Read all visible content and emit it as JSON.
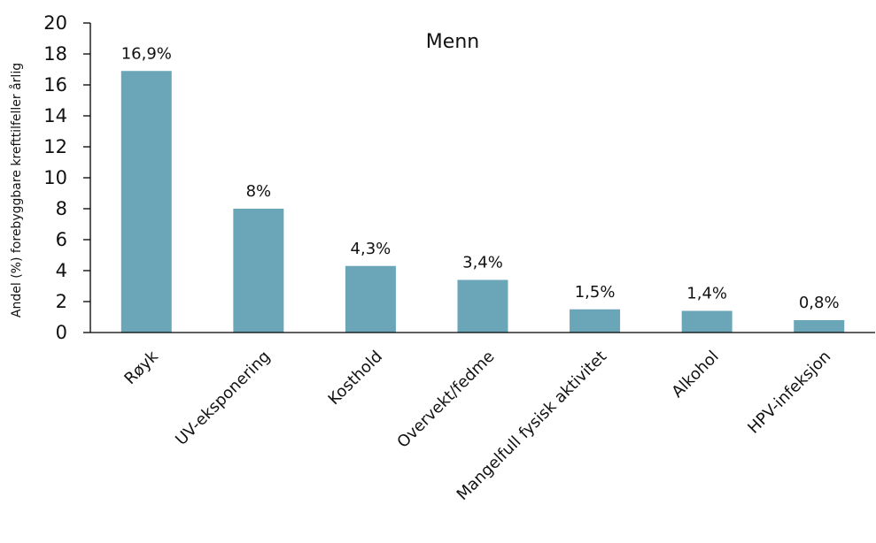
{
  "chart_data": {
    "type": "bar",
    "title": "Menn",
    "xlabel": "",
    "ylabel": "Andel (%) forebyggbare krefttilfeller årlig",
    "ylim": [
      0,
      20
    ],
    "yticks": [
      0,
      2,
      4,
      6,
      8,
      10,
      12,
      14,
      16,
      18,
      20
    ],
    "categories": [
      "Røyk",
      "UV-eksponering",
      "Kosthold",
      "Overvekt/fedme",
      "Mangelfull fysisk aktivitet",
      "Alkohol",
      "HPV-infeksjon"
    ],
    "values": [
      16.9,
      8,
      4.3,
      3.4,
      1.5,
      1.4,
      0.8
    ],
    "data_labels": [
      "16,9%",
      "8%",
      "4,3%",
      "3,4%",
      "1,5%",
      "1,4%",
      "0,8%"
    ],
    "bar_color": "#6aa6b8",
    "grid": false,
    "legend": "none"
  }
}
